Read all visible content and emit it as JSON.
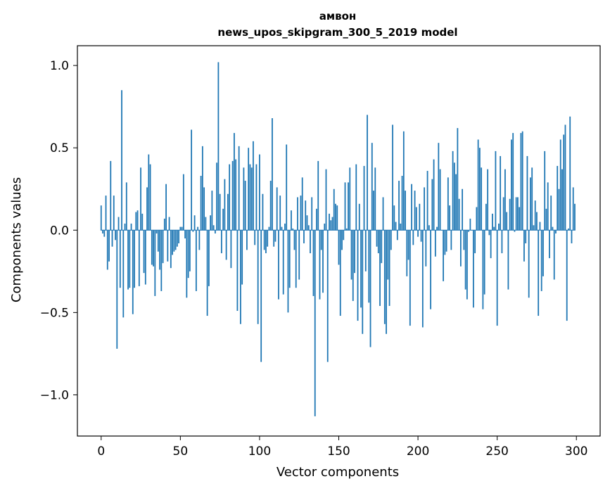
{
  "chart_data": {
    "type": "bar",
    "title": "амвон",
    "subtitle": "news_upos_skipgram_300_5_2019 model",
    "xlabel": "Vector components",
    "ylabel": "Components values",
    "xlim": [
      -15,
      315
    ],
    "ylim": [
      -1.25,
      1.12
    ],
    "xticks": [
      0,
      50,
      100,
      150,
      200,
      250,
      300
    ],
    "yticks": [
      -1.0,
      -0.5,
      0.0,
      0.5,
      1.0
    ],
    "xtick_labels": [
      "0",
      "50",
      "100",
      "150",
      "200",
      "250",
      "300"
    ],
    "ytick_labels": [
      "−1.0",
      "−0.5",
      "0.0",
      "0.5",
      "1.0"
    ],
    "bar_color": "#1f77b4",
    "x": [
      0,
      1,
      2,
      3,
      4,
      5,
      6,
      7,
      8,
      9,
      10,
      11,
      12,
      13,
      14,
      15,
      16,
      17,
      18,
      19,
      20,
      21,
      22,
      23,
      24,
      25,
      26,
      27,
      28,
      29,
      30,
      31,
      32,
      33,
      34,
      35,
      36,
      37,
      38,
      39,
      40,
      41,
      42,
      43,
      44,
      45,
      46,
      47,
      48,
      49,
      50,
      51,
      52,
      53,
      54,
      55,
      56,
      57,
      58,
      59,
      60,
      61,
      62,
      63,
      64,
      65,
      66,
      67,
      68,
      69,
      70,
      71,
      72,
      73,
      74,
      75,
      76,
      77,
      78,
      79,
      80,
      81,
      82,
      83,
      84,
      85,
      86,
      87,
      88,
      89,
      90,
      91,
      92,
      93,
      94,
      95,
      96,
      97,
      98,
      99,
      100,
      101,
      102,
      103,
      104,
      105,
      106,
      107,
      108,
      109,
      110,
      111,
      112,
      113,
      114,
      115,
      116,
      117,
      118,
      119,
      120,
      121,
      122,
      123,
      124,
      125,
      126,
      127,
      128,
      129,
      130,
      131,
      132,
      133,
      134,
      135,
      136,
      137,
      138,
      139,
      140,
      141,
      142,
      143,
      144,
      145,
      146,
      147,
      148,
      149,
      150,
      151,
      152,
      153,
      154,
      155,
      156,
      157,
      158,
      159,
      160,
      161,
      162,
      163,
      164,
      165,
      166,
      167,
      168,
      169,
      170,
      171,
      172,
      173,
      174,
      175,
      176,
      177,
      178,
      179,
      180,
      181,
      182,
      183,
      184,
      185,
      186,
      187,
      188,
      189,
      190,
      191,
      192,
      193,
      194,
      195,
      196,
      197,
      198,
      199,
      200,
      201,
      202,
      203,
      204,
      205,
      206,
      207,
      208,
      209,
      210,
      211,
      212,
      213,
      214,
      215,
      216,
      217,
      218,
      219,
      220,
      221,
      222,
      223,
      224,
      225,
      226,
      227,
      228,
      229,
      230,
      231,
      232,
      233,
      234,
      235,
      236,
      237,
      238,
      239,
      240,
      241,
      242,
      243,
      244,
      245,
      246,
      247,
      248,
      249,
      250,
      251,
      252,
      253,
      254,
      255,
      256,
      257,
      258,
      259,
      260,
      261,
      262,
      263,
      264,
      265,
      266,
      267,
      268,
      269,
      270,
      271,
      272,
      273,
      274,
      275,
      276,
      277,
      278,
      279,
      280,
      281,
      282,
      283,
      284,
      285,
      286,
      287,
      288,
      289,
      290,
      291,
      292,
      293,
      294,
      295,
      296,
      297,
      298,
      299
    ],
    "values": [
      0.15,
      -0.02,
      -0.04,
      0.21,
      -0.24,
      -0.19,
      0.42,
      -0.1,
      0.21,
      -0.06,
      -0.72,
      0.08,
      -0.35,
      0.85,
      -0.53,
      0.04,
      0.29,
      -0.36,
      -0.35,
      0.04,
      -0.51,
      -0.35,
      0.11,
      0.12,
      -0.34,
      0.38,
      0.1,
      -0.26,
      -0.33,
      0.26,
      0.46,
      0.4,
      -0.21,
      -0.22,
      -0.4,
      -0.02,
      -0.13,
      -0.24,
      -0.37,
      -0.2,
      0.07,
      0.28,
      -0.19,
      0.08,
      -0.23,
      -0.15,
      -0.13,
      -0.12,
      -0.1,
      -0.08,
      0.02,
      0.02,
      0.34,
      -0.05,
      -0.41,
      -0.29,
      -0.25,
      0.61,
      -0.01,
      0.09,
      -0.37,
      0.02,
      -0.12,
      0.33,
      0.51,
      0.26,
      0.08,
      -0.52,
      -0.34,
      0.09,
      0.24,
      0.03,
      -0.02,
      0.41,
      1.02,
      0.22,
      -0.14,
      0.13,
      0.31,
      -0.18,
      0.22,
      0.4,
      -0.23,
      0.42,
      0.59,
      0.43,
      -0.49,
      0.51,
      -0.57,
      -0.33,
      0.38,
      0.3,
      -0.12,
      0.5,
      0.4,
      0.38,
      0.54,
      -0.09,
      0.4,
      -0.57,
      0.46,
      -0.8,
      0.22,
      -0.12,
      -0.14,
      -0.1,
      0.02,
      0.3,
      0.68,
      -0.1,
      -0.07,
      0.26,
      -0.42,
      0.21,
      0.02,
      -0.39,
      0.04,
      0.52,
      -0.5,
      -0.35,
      0.12,
      0.01,
      -0.12,
      -0.35,
      0.2,
      -0.3,
      0.21,
      0.32,
      -0.08,
      0.18,
      0.09,
      0.03,
      -0.14,
      0.2,
      -0.4,
      -1.13,
      0.13,
      0.42,
      -0.42,
      -0.12,
      -0.38,
      0.04,
      0.37,
      -0.8,
      0.1,
      0.06,
      0.08,
      0.25,
      0.16,
      0.15,
      -0.21,
      -0.52,
      -0.12,
      -0.06,
      0.29,
      0.01,
      0.29,
      0.38,
      -0.3,
      -0.43,
      -0.26,
      0.4,
      -0.55,
      0.16,
      -0.47,
      -0.63,
      0.39,
      -0.25,
      0.7,
      -0.44,
      -0.71,
      0.53,
      0.24,
      0.38,
      -0.1,
      -0.14,
      -0.46,
      -0.2,
      0.2,
      -0.57,
      -0.63,
      -0.3,
      -0.46,
      -0.12,
      0.64,
      0.15,
      0.05,
      -0.06,
      0.3,
      0.04,
      0.33,
      0.6,
      0.24,
      -0.28,
      -0.18,
      -0.58,
      0.28,
      -0.09,
      0.24,
      0.14,
      -0.04,
      0.16,
      -0.07,
      -0.59,
      0.26,
      -0.22,
      0.36,
      0.03,
      -0.48,
      0.31,
      0.43,
      -0.16,
      0.02,
      0.53,
      0.37,
      0.0,
      -0.31,
      -0.15,
      -0.13,
      0.32,
      0.15,
      -0.12,
      0.48,
      0.41,
      0.34,
      0.62,
      0.19,
      -0.22,
      0.25,
      -0.12,
      -0.36,
      -0.42,
      -0.01,
      0.07,
      0.0,
      -0.47,
      -0.14,
      0.14,
      0.55,
      0.5,
      0.38,
      -0.48,
      -0.39,
      0.16,
      0.37,
      -0.03,
      -0.17,
      0.1,
      0.02,
      0.48,
      -0.58,
      0.04,
      0.45,
      -0.14,
      0.2,
      0.37,
      0.11,
      -0.36,
      0.19,
      0.55,
      0.59,
      -0.01,
      0.2,
      0.2,
      0.14,
      0.59,
      0.6,
      -0.19,
      -0.08,
      0.45,
      -0.41,
      0.32,
      0.38,
      0.03,
      0.18,
      0.11,
      -0.52,
      0.05,
      -0.37,
      -0.28,
      0.48,
      0.13,
      0.29,
      -0.17,
      0.21,
      0.02,
      -0.3,
      -0.02,
      0.39,
      0.25,
      0.55,
      0.37,
      0.58,
      0.64,
      -0.55,
      0.01,
      0.69,
      -0.08,
      0.26,
      0.16
    ]
  }
}
